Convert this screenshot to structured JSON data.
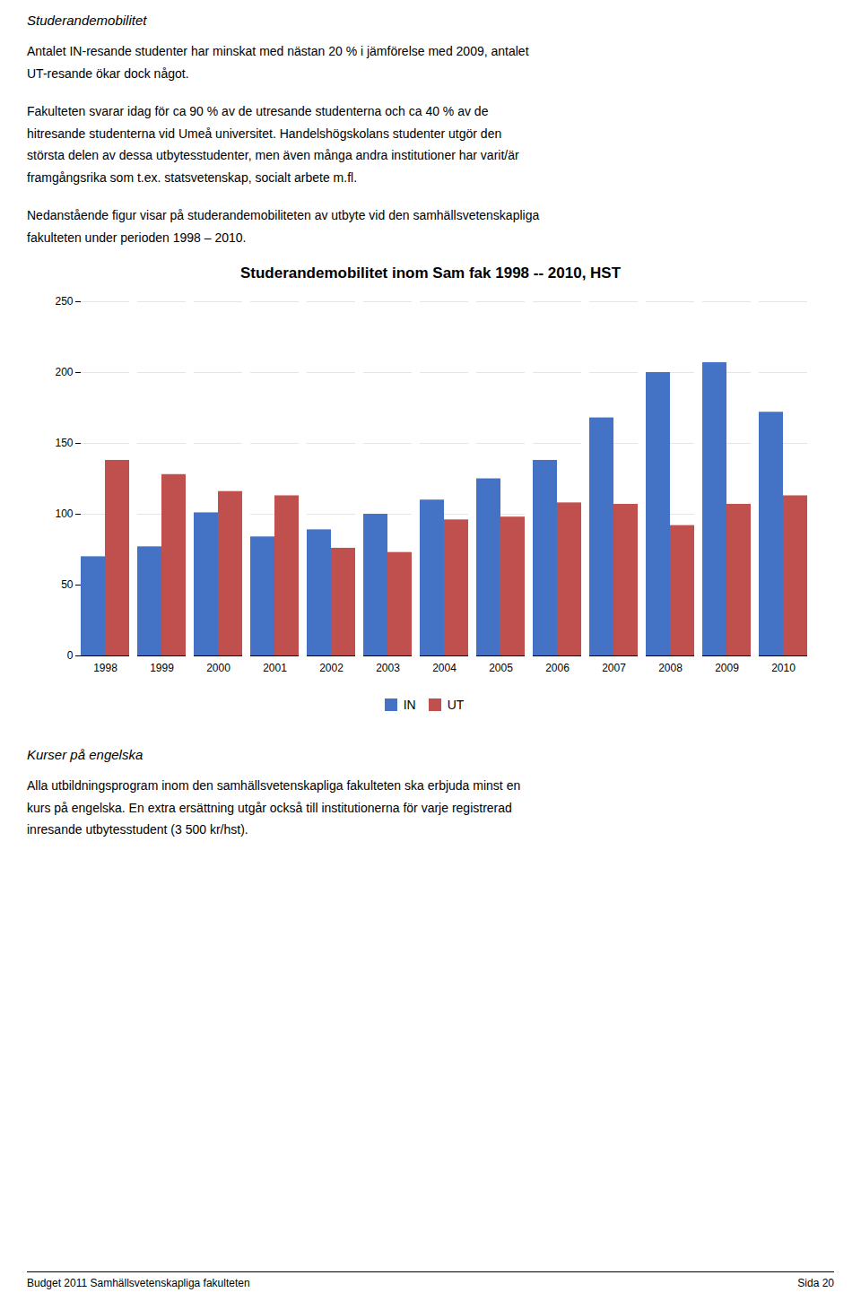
{
  "heading": "Studerandemobilitet",
  "para1": "Antalet IN-resande studenter har minskat med nästan 20 % i jämförelse med 2009, antalet\nUT-resande ökar dock något.",
  "para2": "Fakulteten svarar idag för ca 90 %  av de utresande studenterna och ca 40 % av de\nhitresande studenterna vid Umeå universitet. Handelshögskolans studenter utgör den\nstörsta delen av dessa utbytesstudenter, men även många andra institutioner har varit/är\nframgångsrika som t.ex. statsvetenskap, socialt arbete m.fl.",
  "para3": "Nedanstående figur visar på studerandemobiliteten av utbyte vid den samhällsvetenskapliga\nfakulteten under perioden 1998 – 2010.",
  "section_heading": "Kurser på engelska",
  "para4": "Alla utbildningsprogram inom den samhällsvetenskapliga fakulteten ska erbjuda minst en\nkurs på engelska. En extra ersättning utgår också till institutionerna för varje registrerad\ninresande utbytesstudent (3 500 kr/hst).",
  "footer_left": "Budget 2011 Samhällsvetenskapliga fakulteten",
  "footer_right": "Sida 20",
  "chart_data": {
    "type": "bar",
    "title": "Studerandemobilitet inom Sam fak 1998 -- 2010, HST",
    "categories": [
      "1998",
      "1999",
      "2000",
      "2001",
      "2002",
      "2003",
      "2004",
      "2005",
      "2006",
      "2007",
      "2008",
      "2009",
      "2010"
    ],
    "series": [
      {
        "name": "IN",
        "color": "#4472C4",
        "values": [
          70,
          77,
          101,
          84,
          89,
          100,
          110,
          125,
          138,
          168,
          200,
          207,
          172
        ]
      },
      {
        "name": "UT",
        "color": "#C0504D",
        "values": [
          138,
          128,
          116,
          113,
          76,
          73,
          96,
          98,
          108,
          107,
          92,
          107,
          113
        ]
      }
    ],
    "ylim": [
      0,
      250
    ],
    "yticks": [
      0,
      50,
      100,
      150,
      200,
      250
    ],
    "grid": true,
    "legend": "bottom"
  }
}
